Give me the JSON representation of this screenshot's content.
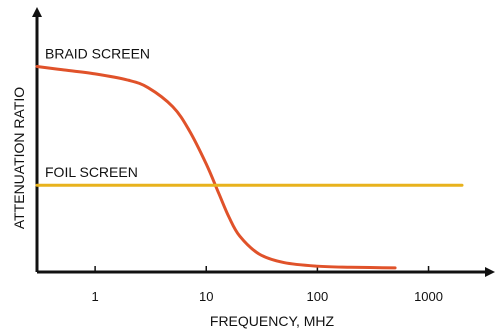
{
  "chart_data": {
    "type": "line",
    "xlabel": "FREQUENCY, MHZ",
    "ylabel": "ATTENUATION  RATIO",
    "x_scale": "log",
    "xlim": [
      0.3,
      2000
    ],
    "ylim": [
      0,
      1
    ],
    "x_ticks": [
      1,
      10,
      100,
      1000
    ],
    "x_tick_labels": [
      "1",
      "10",
      "100",
      "1000"
    ],
    "grid": false,
    "legend": "none",
    "series": [
      {
        "name": "BRAID SCREEN",
        "color": "#e0522a",
        "x": [
          0.3,
          0.5,
          1,
          2,
          3,
          5,
          7,
          10,
          13,
          16,
          20,
          30,
          50,
          100,
          200,
          500
        ],
        "y": [
          0.96,
          0.945,
          0.925,
          0.895,
          0.86,
          0.77,
          0.66,
          0.5,
          0.36,
          0.25,
          0.16,
          0.075,
          0.035,
          0.018,
          0.013,
          0.01
        ]
      },
      {
        "name": "FOIL SCREEN",
        "color": "#e8b21c",
        "x": [
          0.3,
          2000
        ],
        "y": [
          0.4,
          0.4
        ]
      }
    ],
    "annotations": [
      {
        "text": "BRAID SCREEN",
        "series": 0
      },
      {
        "text": "FOIL SCREEN",
        "series": 1
      }
    ]
  }
}
